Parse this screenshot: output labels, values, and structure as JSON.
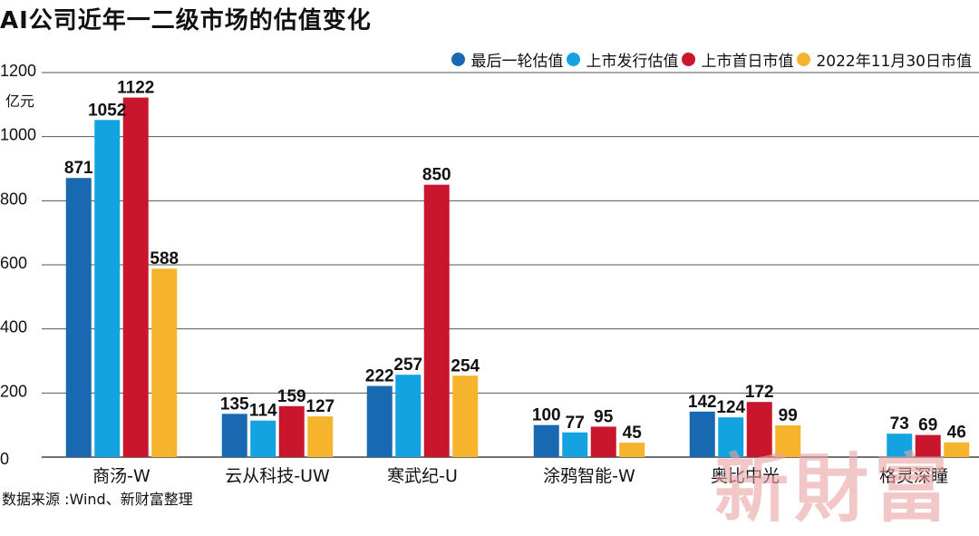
{
  "title": "AI公司近年一二级市场的估值变化",
  "unit": "亿元",
  "source": "数据来源 :Wind、新财富整理",
  "watermark": "新財富",
  "chart_data": {
    "type": "bar",
    "title": "AI公司近年一二级市场的估值变化",
    "ylabel": "亿元",
    "ylim": [
      0,
      1200
    ],
    "yticks": [
      0,
      200,
      400,
      600,
      800,
      1000,
      1200
    ],
    "grid": true,
    "legend_position": "top-right",
    "categories": [
      "商汤-W",
      "云从科技-UW",
      "寒武纪-U",
      "涂鸦智能-W",
      "奥比中光",
      "格灵深瞳"
    ],
    "series": [
      {
        "name": "最后一轮估值",
        "color": "#1869b1",
        "values": [
          871,
          135,
          222,
          100,
          142,
          null
        ]
      },
      {
        "name": "上市发行估值",
        "color": "#12a3e0",
        "values": [
          1052,
          114,
          257,
          77,
          124,
          73
        ]
      },
      {
        "name": "上市首日市值",
        "color": "#c9162d",
        "values": [
          1122,
          159,
          850,
          95,
          172,
          69
        ]
      },
      {
        "name": "2022年11月30日市值",
        "color": "#f6b42c",
        "values": [
          588,
          127,
          254,
          45,
          99,
          46
        ]
      }
    ],
    "data_labels": [
      [
        "871",
        "1052",
        "1122",
        "588"
      ],
      [
        "135",
        "114",
        "159",
        "127"
      ],
      [
        "222",
        "257",
        "850",
        "254"
      ],
      [
        "100",
        "77",
        "95",
        "45"
      ],
      [
        "142",
        "124",
        "172",
        "99"
      ],
      [
        "",
        "73",
        "69",
        "46"
      ]
    ]
  }
}
